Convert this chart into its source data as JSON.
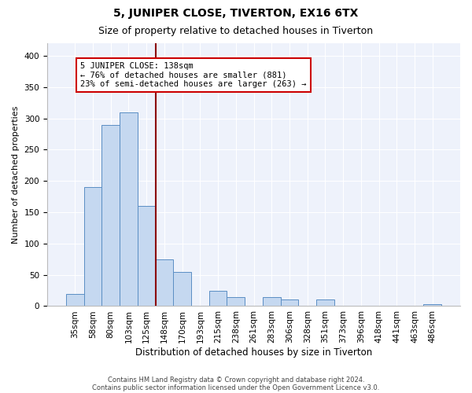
{
  "title": "5, JUNIPER CLOSE, TIVERTON, EX16 6TX",
  "subtitle": "Size of property relative to detached houses in Tiverton",
  "xlabel": "Distribution of detached houses by size in Tiverton",
  "ylabel": "Number of detached properties",
  "bar_color": "#c5d8f0",
  "bar_edge_color": "#5b8ec4",
  "background_color": "#eef2fb",
  "grid_color": "#ffffff",
  "annotation_box_color": "#cc0000",
  "vline_color": "#8b0000",
  "categories": [
    "35sqm",
    "58sqm",
    "80sqm",
    "103sqm",
    "125sqm",
    "148sqm",
    "170sqm",
    "193sqm",
    "215sqm",
    "238sqm",
    "261sqm",
    "283sqm",
    "306sqm",
    "328sqm",
    "351sqm",
    "373sqm",
    "396sqm",
    "418sqm",
    "441sqm",
    "463sqm",
    "486sqm"
  ],
  "values": [
    20,
    190,
    290,
    310,
    160,
    75,
    55,
    0,
    25,
    15,
    0,
    15,
    10,
    0,
    10,
    0,
    0,
    0,
    0,
    0,
    3
  ],
  "vline_position": 4.5,
  "annotation_line1": "5 JUNIPER CLOSE: 138sqm",
  "annotation_line2": "← 76% of detached houses are smaller (881)",
  "annotation_line3": "23% of semi-detached houses are larger (263) →",
  "footer_line1": "Contains HM Land Registry data © Crown copyright and database right 2024.",
  "footer_line2": "Contains public sector information licensed under the Open Government Licence v3.0.",
  "ylim": [
    0,
    420
  ],
  "yticks": [
    0,
    50,
    100,
    150,
    200,
    250,
    300,
    350,
    400
  ],
  "title_fontsize": 10,
  "subtitle_fontsize": 9,
  "ylabel_fontsize": 8,
  "xlabel_fontsize": 8.5,
  "tick_fontsize": 7.5,
  "annotation_fontsize": 7.5,
  "footer_fontsize": 6
}
